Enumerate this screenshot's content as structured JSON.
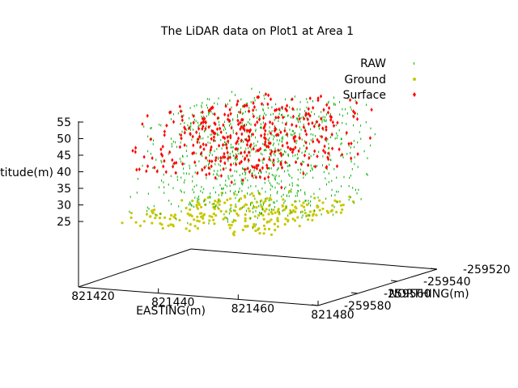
{
  "chart_data": {
    "type": "scatter",
    "title": "The LiDAR data on Plot1 at Area 1",
    "xlabel": "EASTING(m)",
    "ylabel": "NORTHING(m)",
    "zlabel": "Altitude(m)",
    "x_ticks": [
      "821420",
      "821440",
      "821460",
      "821480"
    ],
    "y_ticks": [
      "-259520",
      "-259540",
      "-259560",
      "-259580"
    ],
    "z_ticks": [
      "25",
      "30",
      "35",
      "40",
      "45",
      "50",
      "55"
    ],
    "xlim": [
      821420,
      821480
    ],
    "ylim": [
      -259580,
      -259520
    ],
    "zlim": [
      25,
      55
    ],
    "legend_position": "top-right",
    "series": [
      {
        "name": "RAW",
        "color": "#00b000",
        "marker": "dot",
        "point_count_estimate": 900,
        "z_range": [
          25,
          57
        ]
      },
      {
        "name": "Ground",
        "color": "#c8c800",
        "marker": "dot",
        "point_count_estimate": 250,
        "z_range": [
          23,
          27
        ]
      },
      {
        "name": "Surface",
        "color": "#ff0000",
        "marker": "diamond",
        "point_count_estimate": 380,
        "z_range": [
          38,
          57
        ]
      }
    ]
  }
}
